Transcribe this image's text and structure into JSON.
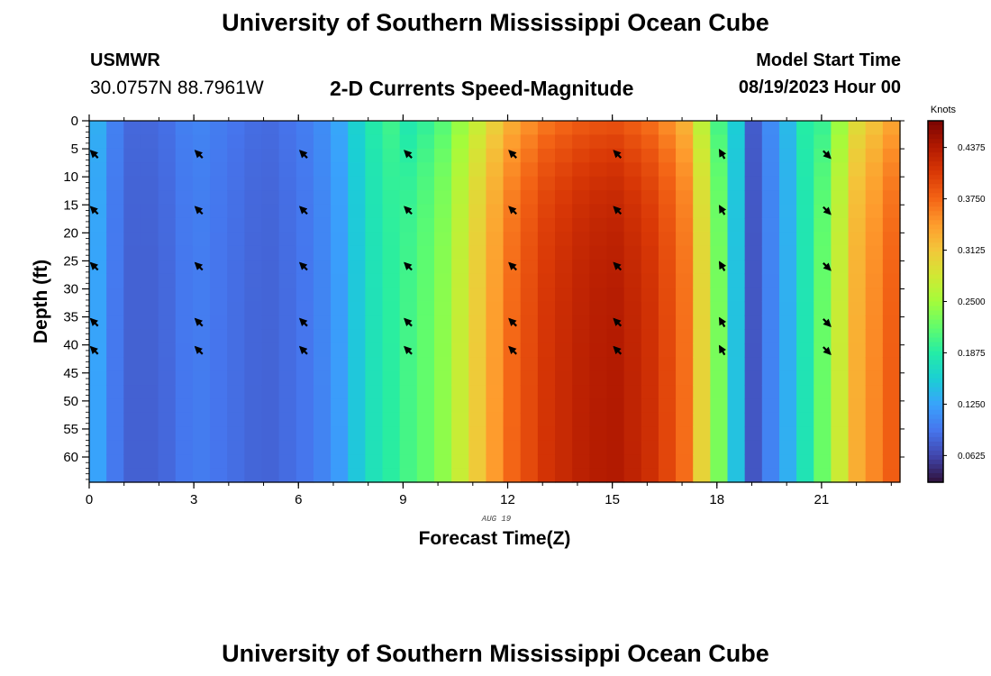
{
  "header": {
    "title": "University of Southern Mississippi Ocean Cube",
    "station_name": "USMWR",
    "station_coords": "30.0757N  88.7961W",
    "subtitle": "2-D Currents Speed-Magnitude",
    "model_start_label": "Model Start Time",
    "model_start_value": "08/19/2023 Hour 00"
  },
  "footer": {
    "title": "University of Southern Mississippi Ocean Cube"
  },
  "chart_data": {
    "type": "heatmap",
    "xlabel": "Forecast Time(Z)",
    "ylabel": "Depth (ft)",
    "date_label": "AUG 19",
    "x_ticks": [
      0,
      3,
      6,
      9,
      12,
      15,
      18,
      21
    ],
    "y_ticks": [
      0,
      5,
      10,
      15,
      20,
      25,
      30,
      35,
      40,
      45,
      50,
      55,
      60
    ],
    "xlim": [
      0,
      23.25
    ],
    "ylim": [
      0,
      64.5
    ],
    "y_inverted": true,
    "colorbar": {
      "title": "Knots",
      "ticks": [
        "0.0625",
        "0.1250",
        "0.1875",
        "0.2500",
        "0.3125",
        "0.3750",
        "0.4375"
      ],
      "range": [
        0.03,
        0.47
      ],
      "colors": [
        "#30123b",
        "#4145ab",
        "#4675ed",
        "#39a2fc",
        "#1bcfd4",
        "#24eca6",
        "#61fc6c",
        "#a4fc3b",
        "#d1e834",
        "#f3c63a",
        "#fe9b2d",
        "#f36315",
        "#d93806",
        "#b11901",
        "#7a0402"
      ]
    },
    "speed_by_hour_knots": [
      0.14,
      0.08,
      0.08,
      0.1,
      0.09,
      0.08,
      0.09,
      0.11,
      0.17,
      0.2,
      0.23,
      0.3,
      0.37,
      0.41,
      0.43,
      0.44,
      0.42,
      0.38,
      0.24,
      0.07,
      0.13,
      0.22,
      0.33,
      0.38
    ],
    "vector_times": [
      0,
      3,
      6,
      9,
      12,
      15,
      18,
      21
    ],
    "vector_depths": [
      5,
      15,
      25,
      35,
      40
    ]
  }
}
